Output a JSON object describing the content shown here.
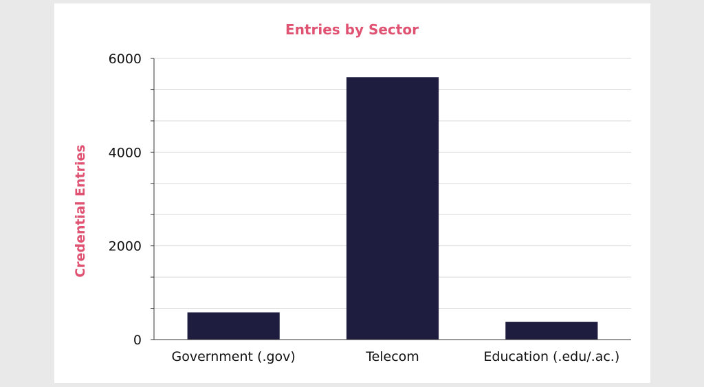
{
  "colors": {
    "bar": "#1e1c3f",
    "title": "#e05272",
    "grid": "#d9d9d9",
    "axis": "#333333",
    "background": "#ffffff",
    "page": "#e9e9ea"
  },
  "chart_data": {
    "type": "bar",
    "title": "Entries by Sector",
    "xlabel": "",
    "ylabel": "Credential Entries",
    "categories": [
      "Government (.gov)",
      "Telecom",
      "Education (.edu/.ac.)"
    ],
    "values": [
      580,
      5600,
      380
    ],
    "ylim": [
      0,
      6000
    ],
    "yticks": [
      0,
      2000,
      4000,
      6000
    ],
    "ytick_labels": [
      "0",
      "2000",
      "4000",
      "6000"
    ],
    "grid": true,
    "legend": "none"
  }
}
